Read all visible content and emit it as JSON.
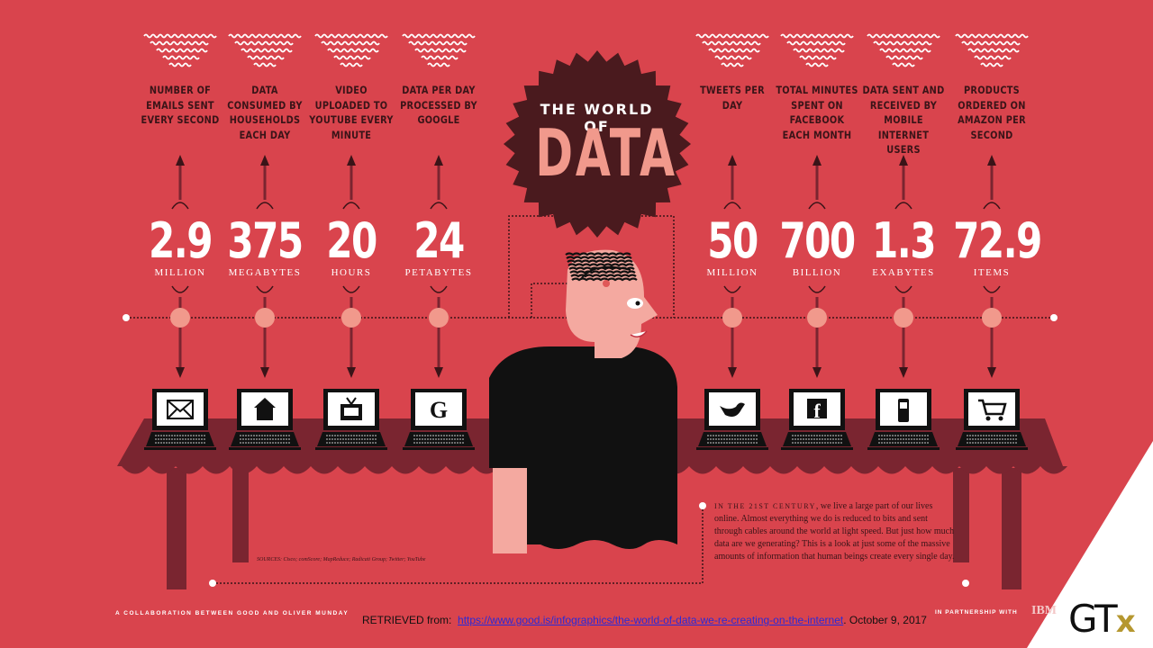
{
  "title": {
    "line1": "THE WORLD OF",
    "line2": "DATA"
  },
  "stats": [
    {
      "label": "NUMBER OF EMAILS SENT EVERY SECOND",
      "value": "2.9",
      "unit": "MILLION",
      "icon": "envelope-icon"
    },
    {
      "label": "DATA CONSUMED BY HOUSEHOLDS EACH DAY",
      "value": "375",
      "unit": "MEGABYTES",
      "icon": "house-icon"
    },
    {
      "label": "VIDEO UPLOADED TO YOUTUBE EVERY MINUTE",
      "value": "20",
      "unit": "HOURS",
      "icon": "tv-icon"
    },
    {
      "label": "DATA PER DAY PROCESSED BY GOOGLE",
      "value": "24",
      "unit": "PETABYTES",
      "icon": "google-icon",
      "glyph": "G"
    },
    {
      "label": "TWEETS PER DAY",
      "value": "50",
      "unit": "MILLION",
      "icon": "twitter-bird-icon"
    },
    {
      "label": "TOTAL MINUTES SPENT ON FACEBOOK EACH MONTH",
      "value": "700",
      "unit": "BILLION",
      "icon": "facebook-icon",
      "glyph": "f"
    },
    {
      "label": "DATA SENT AND RECEIVED BY MOBILE INTERNET USERS",
      "value": "1.3",
      "unit": "EXABYTES",
      "icon": "mobile-phone-icon"
    },
    {
      "label": "PRODUCTS ORDERED ON AMAZON PER SECOND",
      "value": "72.9",
      "unit": "ITEMS",
      "icon": "shopping-cart-icon"
    }
  ],
  "intro": {
    "lead": "IN THE 21ST CENTURY",
    "text": ", we live a large part of our lives online. Almost everything we do is reduced to bits and sent through cables around the world at light speed. But just how much data are we generating? This is a look at just some of the massive amounts of information that human beings create every single day."
  },
  "sources": "SOURCES: Cisco; comScore; MapReduce; Radicati Group; Twitter; YouTube",
  "footer": {
    "collaboration": "A COLLABORATION BETWEEN GOOD AND OLIVER MUNDAY",
    "retrieved_label": "RETRIEVED from:",
    "url": "https://www.good.is/infographics/the-world-of-data-we-re-creating-on-the-internet",
    "date": ". October 9, 2017",
    "partnership": "IN PARTNERSHIP WITH",
    "ibm": "IBM",
    "logo_gt": "GT",
    "logo_x": "x"
  },
  "colors": {
    "background": "#d9444d",
    "dark": "#3a1418",
    "table": "#7a2530",
    "skin": "#f4a9a0",
    "badge": "#4a1a1e"
  }
}
